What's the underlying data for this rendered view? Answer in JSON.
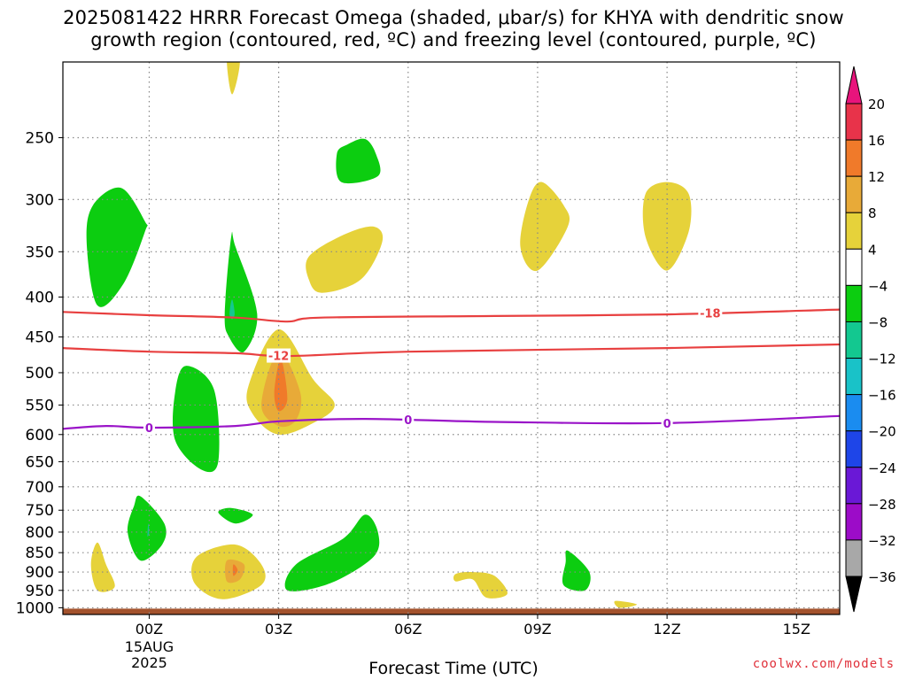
{
  "title": {
    "line1": "2025081422 HRRR Forecast Omega (shaded, μbar/s) for KHYA with dendritic snow",
    "line2": "growth region (contoured, red, ºC) and freezing level (contoured, purple, ºC)"
  },
  "credit": "coolwx.com/models",
  "chart_data": {
    "type": "heatmap",
    "title": "2025081422 HRRR Forecast Omega (shaded, μbar/s) for KHYA with dendritic snow growth region (contoured, red, ºC) and freezing level (contoured, purple, ºC)",
    "xlabel": "Forecast Time (UTC)",
    "ylabel": "",
    "x_range_hours": [
      -2.0,
      16.0
    ],
    "y_scale": "log",
    "y_range_hpa": [
      1020,
      200
    ],
    "x_ticks": [
      {
        "hour": 0,
        "label": "00Z",
        "sub": [
          "15AUG",
          "2025"
        ]
      },
      {
        "hour": 3,
        "label": "03Z",
        "sub": []
      },
      {
        "hour": 6,
        "label": "06Z",
        "sub": []
      },
      {
        "hour": 9,
        "label": "09Z",
        "sub": []
      },
      {
        "hour": 12,
        "label": "12Z",
        "sub": []
      },
      {
        "hour": 15,
        "label": "15Z",
        "sub": []
      }
    ],
    "y_ticks": [
      250,
      300,
      350,
      400,
      450,
      500,
      550,
      600,
      650,
      700,
      750,
      800,
      850,
      900,
      950,
      1000
    ],
    "grid": true,
    "colorbar": {
      "levels": [
        20,
        16,
        12,
        8,
        4,
        -4,
        -8,
        -12,
        -16,
        -20,
        -24,
        -28,
        -32,
        -36
      ],
      "colors": [
        "#e8334a",
        "#f07a2a",
        "#e8aa38",
        "#e6d23a",
        "#ffffff",
        "#0ccd10",
        "#13c890",
        "#19c2c8",
        "#1a8cf0",
        "#1e45e8",
        "#6a18d6",
        "#9c0cc8",
        "#a8a8a8"
      ],
      "top_arrow_color": "#e8147c",
      "bottom_arrow_color": "#000000"
    },
    "omega_regions": [
      {
        "value": -6,
        "points": [
          [
            -0.65,
            290
          ],
          [
            -0.1,
            320
          ],
          [
            -0.1,
            330
          ],
          [
            -0.6,
            385
          ],
          [
            -1.2,
            410
          ],
          [
            -1.45,
            340
          ],
          [
            -1.3,
            305
          ]
        ]
      },
      {
        "value": -6,
        "points": [
          [
            1.9,
            335
          ],
          [
            2.0,
            345
          ],
          [
            2.5,
            420
          ],
          [
            2.2,
            470
          ],
          [
            1.85,
            450
          ],
          [
            1.75,
            420
          ]
        ]
      },
      {
        "value": -10,
        "points": [
          [
            1.92,
            403
          ],
          [
            1.98,
            420
          ],
          [
            1.92,
            427
          ],
          [
            1.86,
            420
          ]
        ]
      },
      {
        "value": -6,
        "points": [
          [
            0.85,
            490
          ],
          [
            1.5,
            525
          ],
          [
            1.6,
            650
          ],
          [
            1.2,
            665
          ],
          [
            0.6,
            610
          ],
          [
            0.6,
            530
          ]
        ]
      },
      {
        "value": -6,
        "points": [
          [
            1.6,
            755
          ],
          [
            1.9,
            745
          ],
          [
            2.4,
            760
          ],
          [
            2.0,
            780
          ]
        ]
      },
      {
        "value": -6,
        "points": [
          [
            4.6,
            255
          ],
          [
            4.35,
            262
          ],
          [
            4.45,
            285
          ],
          [
            5.3,
            280
          ],
          [
            5.25,
            262
          ],
          [
            5.0,
            251
          ]
        ]
      },
      {
        "value": -6,
        "points": [
          [
            -0.2,
            720
          ],
          [
            0.35,
            780
          ],
          [
            0.3,
            830
          ],
          [
            -0.2,
            870
          ],
          [
            -0.5,
            800
          ],
          [
            -0.35,
            740
          ]
        ]
      },
      {
        "value": -10,
        "points": [
          [
            -0.02,
            780
          ],
          [
            0.0,
            800
          ],
          [
            -0.04,
            810
          ]
        ]
      },
      {
        "value": -6,
        "points": [
          [
            5.0,
            760
          ],
          [
            5.3,
            800
          ],
          [
            5.2,
            860
          ],
          [
            4.2,
            930
          ],
          [
            3.2,
            950
          ],
          [
            3.4,
            880
          ],
          [
            4.5,
            815
          ]
        ]
      },
      {
        "value": -6,
        "points": [
          [
            9.7,
            845
          ],
          [
            10.2,
            900
          ],
          [
            10.1,
            950
          ],
          [
            9.6,
            935
          ],
          [
            9.65,
            875
          ]
        ]
      },
      {
        "value": 6,
        "points": [
          [
            1.9,
            192
          ],
          [
            2.1,
            200
          ],
          [
            1.92,
            220
          ],
          [
            1.8,
            200
          ]
        ]
      },
      {
        "value": 6,
        "points": [
          [
            -1.2,
            825
          ],
          [
            -1.0,
            880
          ],
          [
            -0.8,
            940
          ],
          [
            -1.2,
            950
          ],
          [
            -1.35,
            880
          ]
        ]
      },
      {
        "value": 6,
        "points": [
          [
            1.1,
            860
          ],
          [
            2.0,
            830
          ],
          [
            2.6,
            880
          ],
          [
            2.6,
            935
          ],
          [
            1.7,
            975
          ],
          [
            1.05,
            930
          ]
        ]
      },
      {
        "value": 10,
        "points": [
          [
            1.8,
            870
          ],
          [
            2.2,
            880
          ],
          [
            2.1,
            920
          ],
          [
            1.8,
            925
          ]
        ]
      },
      {
        "value": 14,
        "points": [
          [
            1.95,
            880
          ],
          [
            2.05,
            895
          ],
          [
            1.95,
            910
          ]
        ]
      },
      {
        "value": 6,
        "points": [
          [
            3.0,
            440
          ],
          [
            3.8,
            510
          ],
          [
            4.3,
            550
          ],
          [
            3.8,
            580
          ],
          [
            3.0,
            600
          ],
          [
            2.4,
            565
          ],
          [
            2.3,
            520
          ]
        ]
      },
      {
        "value": 10,
        "points": [
          [
            3.0,
            470
          ],
          [
            3.5,
            530
          ],
          [
            3.4,
            575
          ],
          [
            3.0,
            585
          ],
          [
            2.6,
            550
          ]
        ]
      },
      {
        "value": 14,
        "points": [
          [
            3.05,
            480
          ],
          [
            3.2,
            540
          ],
          [
            3.0,
            560
          ],
          [
            2.9,
            530
          ]
        ]
      },
      {
        "value": 6,
        "points": [
          [
            5.2,
            325
          ],
          [
            5.4,
            340
          ],
          [
            4.9,
            380
          ],
          [
            4.0,
            395
          ],
          [
            3.7,
            380
          ],
          [
            3.7,
            355
          ],
          [
            4.5,
            333
          ]
        ]
      },
      {
        "value": 6,
        "points": [
          [
            9.1,
            285
          ],
          [
            9.6,
            305
          ],
          [
            9.7,
            325
          ],
          [
            9.0,
            370
          ],
          [
            8.6,
            345
          ],
          [
            8.8,
            300
          ]
        ]
      },
      {
        "value": 6,
        "points": [
          [
            12.0,
            285
          ],
          [
            12.5,
            295
          ],
          [
            12.5,
            330
          ],
          [
            12.0,
            370
          ],
          [
            11.5,
            335
          ],
          [
            11.5,
            295
          ]
        ]
      },
      {
        "value": 6,
        "points": [
          [
            7.1,
            905
          ],
          [
            7.5,
            900
          ],
          [
            8.0,
            910
          ],
          [
            8.3,
            960
          ],
          [
            7.8,
            970
          ],
          [
            7.5,
            920
          ],
          [
            7.1,
            925
          ]
        ]
      },
      {
        "value": 6,
        "points": [
          [
            10.8,
            980
          ],
          [
            11.3,
            990
          ],
          [
            10.9,
            1000
          ]
        ]
      }
    ],
    "snow_growth_contours": [
      {
        "label": "-18",
        "color": "#e84040",
        "label_hour": 13.0,
        "points": [
          [
            -2.0,
            418
          ],
          [
            0.0,
            422
          ],
          [
            2.0,
            425
          ],
          [
            3.2,
            430
          ],
          [
            4.0,
            425
          ],
          [
            8.0,
            423
          ],
          [
            12.0,
            421
          ],
          [
            16.0,
            415
          ]
        ]
      },
      {
        "label": "-12",
        "color": "#e84040",
        "label_hour": 3.0,
        "points": [
          [
            -2.0,
            465
          ],
          [
            0.0,
            470
          ],
          [
            2.0,
            472
          ],
          [
            3.2,
            476
          ],
          [
            6.0,
            470
          ],
          [
            12.0,
            465
          ],
          [
            16.0,
            460
          ]
        ]
      }
    ],
    "freezing_level": [
      {
        "label": "0",
        "color": "#9a14c8",
        "label_hours": [
          0.0,
          6.0,
          12.0
        ],
        "points": [
          [
            -2.0,
            590
          ],
          [
            -1.0,
            585
          ],
          [
            0.0,
            588
          ],
          [
            2.0,
            585
          ],
          [
            3.0,
            577
          ],
          [
            5.0,
            573
          ],
          [
            8.0,
            578
          ],
          [
            12.0,
            580
          ],
          [
            16.0,
            568
          ]
        ]
      }
    ],
    "ground_pressure_hpa": 1000
  }
}
